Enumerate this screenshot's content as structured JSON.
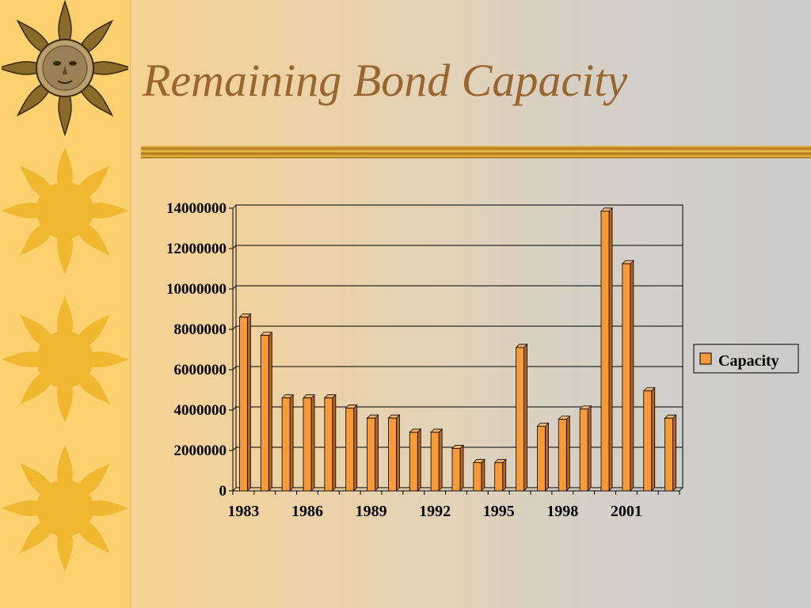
{
  "slide": {
    "title": "Remaining Bond Capacity"
  },
  "colors": {
    "bar": "#f69a3a",
    "bar_top": "#f8b46a",
    "bar_side": "#b8641c",
    "title": "#9a6630",
    "sidebar": "#fdd070",
    "sun": "#f0b830"
  },
  "chart_data": {
    "type": "bar",
    "title": "",
    "xlabel": "",
    "ylabel": "",
    "x_tick_labels": [
      "1983",
      "1986",
      "1989",
      "1992",
      "1995",
      "1998",
      "2001"
    ],
    "categories": [
      "1983",
      "1984",
      "1985",
      "1986",
      "1987",
      "1988",
      "1989",
      "1990",
      "1991",
      "1992",
      "1993",
      "1994",
      "1995",
      "1996",
      "1997",
      "1998",
      "1999",
      "2000",
      "2001",
      "2002",
      "2003"
    ],
    "series": [
      {
        "name": "Capacity",
        "values": [
          8600000,
          7700000,
          4600000,
          4600000,
          4600000,
          4100000,
          3600000,
          3600000,
          2900000,
          2900000,
          2100000,
          1400000,
          1400000,
          7100000,
          3200000,
          3550000,
          4050000,
          13850000,
          11250000,
          4950000,
          3600000
        ]
      }
    ],
    "ylim": [
      0,
      14000000
    ],
    "y_ticks": [
      "0",
      "2000000",
      "4000000",
      "6000000",
      "8000000",
      "10000000",
      "12000000",
      "14000000"
    ],
    "grid": true,
    "legend_position": "right"
  }
}
